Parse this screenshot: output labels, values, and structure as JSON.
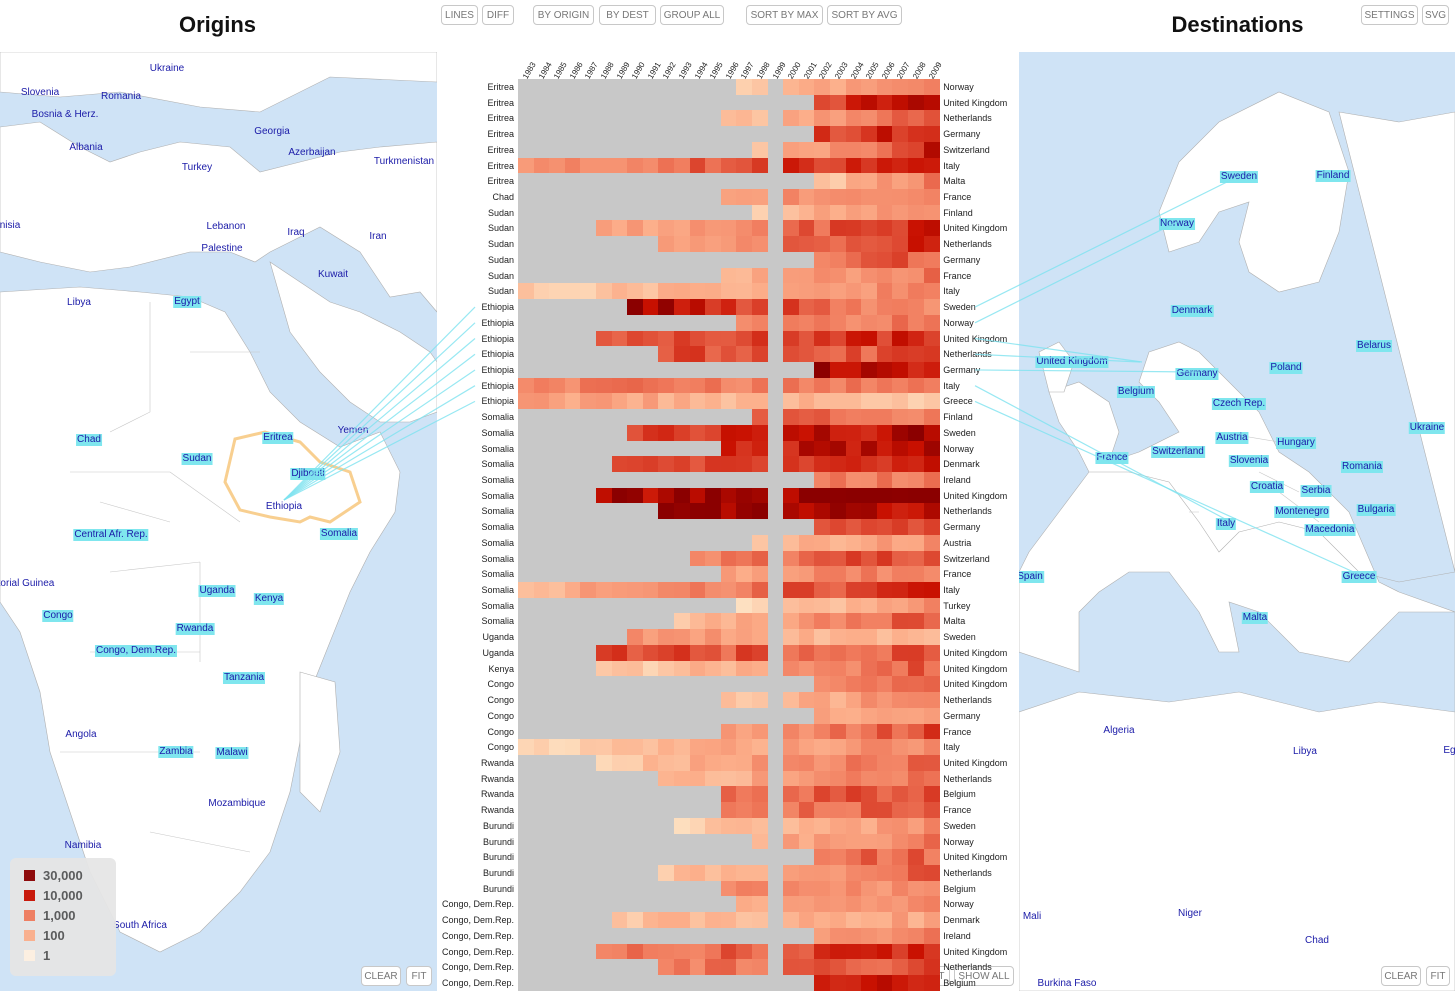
{
  "titles": {
    "origins": "Origins",
    "destinations": "Destinations"
  },
  "buttons": {
    "lines": "LINES",
    "diff": "DIFF",
    "by_origin": "BY ORIGIN",
    "by_dest": "BY DEST",
    "group_all": "GROUP ALL",
    "sort_by_max": "SORT BY MAX",
    "sort_by_avg": "SORT BY AVG",
    "settings": "SETTINGS",
    "svg": "SVG",
    "clear_left": "CLEAR",
    "fit_left": "FIT",
    "fit_mid": "FIT",
    "show_all": "SHOW ALL",
    "clear_right": "CLEAR",
    "fit_right": "FIT"
  },
  "legend": [
    {
      "label": "30,000",
      "color": "#8b0000"
    },
    {
      "label": "10,000",
      "color": "#c81000"
    },
    {
      "label": "1,000",
      "color": "#f07a5c"
    },
    {
      "label": "100",
      "color": "#fcae8a"
    },
    {
      "label": "1",
      "color": "#fff0e0"
    }
  ],
  "origin_map_labels": [
    {
      "text": "Ukraine",
      "hl": false
    },
    {
      "text": "Slovenia",
      "hl": false
    },
    {
      "text": "Romania",
      "hl": false
    },
    {
      "text": "Bosnia & Herz.",
      "hl": false
    },
    {
      "text": "Georgia",
      "hl": false
    },
    {
      "text": "Albania",
      "hl": false
    },
    {
      "text": "Azerbaijan",
      "hl": false
    },
    {
      "text": "Turkmenistan",
      "hl": false
    },
    {
      "text": "Turkey",
      "hl": false
    },
    {
      "text": "nisia",
      "hl": false
    },
    {
      "text": "Lebanon",
      "hl": false
    },
    {
      "text": "Iraq",
      "hl": false
    },
    {
      "text": "Iran",
      "hl": false
    },
    {
      "text": "Palestine",
      "hl": false
    },
    {
      "text": "Kuwait",
      "hl": false
    },
    {
      "text": "Libya",
      "hl": false
    },
    {
      "text": "Egypt",
      "hl": true
    },
    {
      "text": "Eritrea",
      "hl": true
    },
    {
      "text": "Yemen",
      "hl": false
    },
    {
      "text": "Chad",
      "hl": true
    },
    {
      "text": "Sudan",
      "hl": true
    },
    {
      "text": "Djibouti",
      "hl": true
    },
    {
      "text": "Ethiopia",
      "hl": false
    },
    {
      "text": "Central Afr. Rep.",
      "hl": true
    },
    {
      "text": "Somalia",
      "hl": true
    },
    {
      "text": "torial Guinea",
      "hl": false
    },
    {
      "text": "Uganda",
      "hl": true
    },
    {
      "text": "Kenya",
      "hl": true
    },
    {
      "text": "Congo",
      "hl": true
    },
    {
      "text": "Rwanda",
      "hl": true
    },
    {
      "text": "Congo, Dem.Rep.",
      "hl": true
    },
    {
      "text": "Tanzania",
      "hl": true
    },
    {
      "text": "Angola",
      "hl": false
    },
    {
      "text": "Zambia",
      "hl": true
    },
    {
      "text": "Malawi",
      "hl": true
    },
    {
      "text": "Mozambique",
      "hl": false
    },
    {
      "text": "Namibia",
      "hl": false
    },
    {
      "text": "South Africa",
      "hl": false
    }
  ],
  "dest_map_labels": [
    {
      "text": "Sweden",
      "hl": true
    },
    {
      "text": "Finland",
      "hl": true
    },
    {
      "text": "Norway",
      "hl": true
    },
    {
      "text": "Denmark",
      "hl": true
    },
    {
      "text": "Belarus",
      "hl": true
    },
    {
      "text": "United Kingdom",
      "hl": true
    },
    {
      "text": "Germany",
      "hl": true
    },
    {
      "text": "Poland",
      "hl": true
    },
    {
      "text": "Belgium",
      "hl": true
    },
    {
      "text": "Czech Rep.",
      "hl": true
    },
    {
      "text": "Ukraine",
      "hl": true
    },
    {
      "text": "Austria",
      "hl": true
    },
    {
      "text": "Hungary",
      "hl": true
    },
    {
      "text": "France",
      "hl": true
    },
    {
      "text": "Switzerland",
      "hl": true
    },
    {
      "text": "Slovenia",
      "hl": true
    },
    {
      "text": "Romania",
      "hl": true
    },
    {
      "text": "Croatia",
      "hl": true
    },
    {
      "text": "Serbia",
      "hl": true
    },
    {
      "text": "Bulgaria",
      "hl": true
    },
    {
      "text": "Montenegro",
      "hl": true
    },
    {
      "text": "Italy",
      "hl": true
    },
    {
      "text": "Macedonia",
      "hl": true
    },
    {
      "text": "Spain",
      "hl": true
    },
    {
      "text": "Greece",
      "hl": true
    },
    {
      "text": "Malta",
      "hl": true
    },
    {
      "text": "Algeria",
      "hl": false
    },
    {
      "text": "Libya",
      "hl": false
    },
    {
      "text": "Egy",
      "hl": false
    },
    {
      "text": "Mali",
      "hl": false
    },
    {
      "text": "Niger",
      "hl": false
    },
    {
      "text": "Chad",
      "hl": false
    },
    {
      "text": "Burkina Faso",
      "hl": false
    }
  ],
  "chart_data": {
    "type": "heatmap",
    "x": [
      "1983",
      "1984",
      "1985",
      "1986",
      "1987",
      "1988",
      "1989",
      "1990",
      "1991",
      "1992",
      "1993",
      "1994",
      "1995",
      "1996",
      "1997",
      "1998",
      "1999",
      "2000",
      "2001",
      "2002",
      "2003",
      "2004",
      "2005",
      "2006",
      "2007",
      "2008",
      "2009"
    ],
    "color_scale": {
      "1": "#fff0e0",
      "100": "#fcae8a",
      "1,000": "#f07a5c",
      "10,000": "#c81000",
      "30,000": "#8b0000"
    },
    "no_data_color": "#c8c8c8",
    "rows": [
      {
        "origin": "Eritrea",
        "dest": "Norway",
        "start": 14,
        "base": 1.3,
        "peak": 3.0
      },
      {
        "origin": "Eritrea",
        "dest": "United Kingdom",
        "start": 19,
        "base": 3.5,
        "peak": 4.3
      },
      {
        "origin": "Eritrea",
        "dest": "Netherlands",
        "start": 13,
        "base": 1.4,
        "peak": 3.3
      },
      {
        "origin": "Eritrea",
        "dest": "Germany",
        "start": 19,
        "base": 3.6,
        "peak": 3.9
      },
      {
        "origin": "Eritrea",
        "dest": "Switzerland",
        "start": 15,
        "base": 1.5,
        "peak": 3.9
      },
      {
        "origin": "Eritrea",
        "dest": "Italy",
        "start": 0,
        "base": 2.4,
        "peak": 4.2
      },
      {
        "origin": "Eritrea",
        "dest": "Malta",
        "start": 19,
        "base": 1.4,
        "peak": 3.0
      },
      {
        "origin": "Chad",
        "dest": "France",
        "start": 13,
        "base": 2.5,
        "peak": 2.9
      },
      {
        "origin": "Sudan",
        "dest": "Finland",
        "start": 15,
        "base": 1.6,
        "peak": 2.8
      },
      {
        "origin": "Sudan",
        "dest": "United Kingdom",
        "start": 5,
        "base": 2.0,
        "peak": 3.9
      },
      {
        "origin": "Sudan",
        "dest": "Netherlands",
        "start": 9,
        "base": 2.2,
        "peak": 4.0
      },
      {
        "origin": "Sudan",
        "dest": "Germany",
        "start": 19,
        "base": 3.0,
        "peak": 3.3
      },
      {
        "origin": "Sudan",
        "dest": "France",
        "start": 13,
        "base": 2.0,
        "peak": 2.9
      },
      {
        "origin": "Sudan",
        "dest": "Italy",
        "start": 0,
        "base": 1.3,
        "peak": 2.8
      },
      {
        "origin": "Ethiopia",
        "dest": "Sweden",
        "start": 7,
        "base": 4.3,
        "peak": 2.5
      },
      {
        "origin": "Ethiopia",
        "dest": "Norway",
        "start": 14,
        "base": 2.5,
        "peak": 3.0
      },
      {
        "origin": "Ethiopia",
        "dest": "United Kingdom",
        "start": 5,
        "base": 3.3,
        "peak": 3.8
      },
      {
        "origin": "Ethiopia",
        "dest": "Netherlands",
        "start": 9,
        "base": 3.5,
        "peak": 3.3
      },
      {
        "origin": "Ethiopia",
        "dest": "Germany",
        "start": 19,
        "base": 4.3,
        "peak": 3.8
      },
      {
        "origin": "Ethiopia",
        "dest": "Italy",
        "start": 0,
        "base": 2.8,
        "peak": 3.0
      },
      {
        "origin": "Ethiopia",
        "dest": "Greece",
        "start": 0,
        "base": 2.3,
        "peak": 1.5
      },
      {
        "origin": "Somalia",
        "dest": "Finland",
        "start": 15,
        "base": 3.2,
        "peak": 2.8
      },
      {
        "origin": "Somalia",
        "dest": "Sweden",
        "start": 7,
        "base": 3.6,
        "peak": 4.2
      },
      {
        "origin": "Somalia",
        "dest": "Norway",
        "start": 13,
        "base": 3.9,
        "peak": 4.0
      },
      {
        "origin": "Somalia",
        "dest": "Denmark",
        "start": 6,
        "base": 3.4,
        "peak": 3.8
      },
      {
        "origin": "Somalia",
        "dest": "Ireland",
        "start": 19,
        "base": 2.8,
        "peak": 3.0
      },
      {
        "origin": "Somalia",
        "dest": "United Kingdom",
        "start": 5,
        "base": 4.2,
        "peak": 4.6
      },
      {
        "origin": "Somalia",
        "dest": "Netherlands",
        "start": 9,
        "base": 4.5,
        "peak": 4.0
      },
      {
        "origin": "Somalia",
        "dest": "Germany",
        "start": 19,
        "base": 3.2,
        "peak": 3.5
      },
      {
        "origin": "Somalia",
        "dest": "Austria",
        "start": 15,
        "base": 1.6,
        "peak": 2.5
      },
      {
        "origin": "Somalia",
        "dest": "Switzerland",
        "start": 11,
        "base": 2.8,
        "peak": 3.6
      },
      {
        "origin": "Somalia",
        "dest": "France",
        "start": 13,
        "base": 2.3,
        "peak": 3.0
      },
      {
        "origin": "Somalia",
        "dest": "Italy",
        "start": 0,
        "base": 1.8,
        "peak": 4.0
      },
      {
        "origin": "Somalia",
        "dest": "Turkey",
        "start": 14,
        "base": 1.0,
        "peak": 2.6
      },
      {
        "origin": "Somalia",
        "dest": "Malta",
        "start": 10,
        "base": 1.5,
        "peak": 3.5
      },
      {
        "origin": "Uganda",
        "dest": "Sweden",
        "start": 7,
        "base": 2.6,
        "peak": 1.5
      },
      {
        "origin": "Uganda",
        "dest": "United Kingdom",
        "start": 5,
        "base": 3.4,
        "peak": 3.3
      },
      {
        "origin": "Kenya",
        "dest": "United Kingdom",
        "start": 5,
        "base": 1.2,
        "peak": 3.3
      },
      {
        "origin": "Congo",
        "dest": "United Kingdom",
        "start": 19,
        "base": 2.8,
        "peak": 3.0
      },
      {
        "origin": "Congo",
        "dest": "Netherlands",
        "start": 13,
        "base": 1.4,
        "peak": 2.8
      },
      {
        "origin": "Congo",
        "dest": "Germany",
        "start": 19,
        "base": 2.0,
        "peak": 2.3
      },
      {
        "origin": "Congo",
        "dest": "France",
        "start": 13,
        "base": 2.4,
        "peak": 3.4
      },
      {
        "origin": "Congo",
        "dest": "Italy",
        "start": 0,
        "base": 1.2,
        "peak": 2.8
      },
      {
        "origin": "Rwanda",
        "dest": "United Kingdom",
        "start": 5,
        "base": 1.4,
        "peak": 3.3
      },
      {
        "origin": "Rwanda",
        "dest": "Netherlands",
        "start": 9,
        "base": 1.6,
        "peak": 3.2
      },
      {
        "origin": "Rwanda",
        "dest": "Belgium",
        "start": 13,
        "base": 3.2,
        "peak": 3.4
      },
      {
        "origin": "Rwanda",
        "dest": "France",
        "start": 13,
        "base": 2.8,
        "peak": 3.3
      },
      {
        "origin": "Burundi",
        "dest": "Sweden",
        "start": 10,
        "base": 1.3,
        "peak": 2.6
      },
      {
        "origin": "Burundi",
        "dest": "Norway",
        "start": 15,
        "base": 2.0,
        "peak": 2.9
      },
      {
        "origin": "Burundi",
        "dest": "United Kingdom",
        "start": 19,
        "base": 3.0,
        "peak": 3.2
      },
      {
        "origin": "Burundi",
        "dest": "Netherlands",
        "start": 9,
        "base": 1.6,
        "peak": 3.2
      },
      {
        "origin": "Burundi",
        "dest": "Belgium",
        "start": 13,
        "base": 2.7,
        "peak": 2.6
      },
      {
        "origin": "Congo, Dem.Rep.",
        "dest": "Norway",
        "start": 14,
        "base": 1.8,
        "peak": 2.7
      },
      {
        "origin": "Congo, Dem.Rep.",
        "dest": "Denmark",
        "start": 6,
        "base": 1.6,
        "peak": 2.2
      },
      {
        "origin": "Congo, Dem.Rep.",
        "dest": "Ireland",
        "start": 19,
        "base": 2.6,
        "peak": 2.8
      },
      {
        "origin": "Congo, Dem.Rep.",
        "dest": "United Kingdom",
        "start": 5,
        "base": 2.8,
        "peak": 3.9
      },
      {
        "origin": "Congo, Dem.Rep.",
        "dest": "Netherlands",
        "start": 9,
        "base": 2.8,
        "peak": 3.4
      },
      {
        "origin": "Congo, Dem.Rep.",
        "dest": "Belgium",
        "start": 19,
        "base": 3.9,
        "peak": 4.0
      }
    ]
  }
}
